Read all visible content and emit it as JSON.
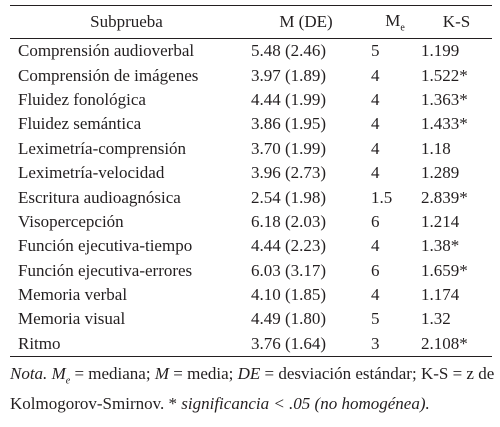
{
  "table": {
    "header": [
      "Subprueba",
      "M (DE)",
      "M",
      "K-S"
    ],
    "header_subscript": "e",
    "rows": [
      [
        "Comprensión audioverbal",
        "5.48 (2.46)",
        "5",
        "1.199"
      ],
      [
        "Comprensión de imágenes",
        "3.97 (1.89)",
        "4",
        "1.522*"
      ],
      [
        "Fluidez fonológica",
        "4.44 (1.99)",
        "4",
        "1.363*"
      ],
      [
        "Fluidez semántica",
        "3.86 (1.95)",
        "4",
        "1.433*"
      ],
      [
        "Leximetría-comprensión",
        "3.70 (1.99)",
        "4",
        "1.18"
      ],
      [
        "Leximetría-velocidad",
        "3.96 (2.73)",
        "4",
        "1.289"
      ],
      [
        "Escritura audioagnósica",
        "2.54 (1.98)",
        "1.5",
        "2.839*"
      ],
      [
        "Visopercepción",
        "6.18 (2.03)",
        "6",
        "1.214"
      ],
      [
        "Función ejecutiva-tiempo",
        "4.44 (2.23)",
        "4",
        "1.38*"
      ],
      [
        "Función ejecutiva-errores",
        "6.03 (3.17)",
        "6",
        "1.659*"
      ],
      [
        "Memoria verbal",
        "4.10 (1.85)",
        "4",
        "1.174"
      ],
      [
        "Memoria visual",
        "4.49 (1.80)",
        "5",
        "1.32"
      ],
      [
        "Ritmo",
        "3.76 (1.64)",
        "3",
        "2.108*"
      ]
    ]
  },
  "note": [
    {
      "text": "Nota. ",
      "italic": true
    },
    {
      "text": "M",
      "italic": true
    },
    {
      "text": "e",
      "italic": true,
      "sub": true
    },
    {
      "text": " = mediana; "
    },
    {
      "text": "M",
      "italic": true
    },
    {
      "text": " = media; "
    },
    {
      "text": "DE",
      "italic": true
    },
    {
      "text": " = desviación estándar; K-S = z de Kolmogorov-Smirnov. * "
    },
    {
      "text": "significancia < .05 (no homogénea).",
      "italic": true
    }
  ]
}
